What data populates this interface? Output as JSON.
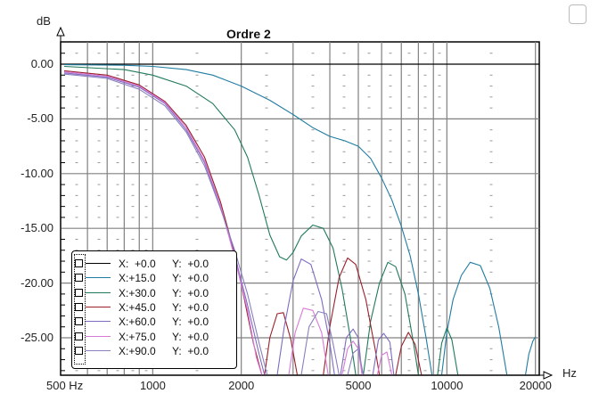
{
  "window": {
    "corner_button": "maximize"
  },
  "chart_data": {
    "type": "line",
    "title": "Ordre 2",
    "xlabel": "Hz",
    "ylabel": "dB",
    "xscale": "log",
    "xlim": [
      500,
      20000
    ],
    "ylim": [
      -28.4,
      2.0
    ],
    "grid": true,
    "legend_position": "lower-left",
    "x_tick_labels": [
      "500 Hz",
      "1000",
      "2000",
      "5000",
      "10000",
      "20000"
    ],
    "x_ticks": [
      500,
      1000,
      2000,
      5000,
      10000,
      20000
    ],
    "x_minor_grid": [
      600,
      700,
      800,
      900,
      1000,
      2000,
      3000,
      4000,
      5000,
      6000,
      7000,
      8000,
      9000,
      10000,
      20000
    ],
    "y_tick_labels": [
      "0.00",
      "-5.00",
      "-10.00",
      "-15.00",
      "-20.00",
      "-25.00"
    ],
    "y_ticks": [
      0,
      -5,
      -10,
      -15,
      -20,
      -25
    ],
    "series": [
      {
        "name": "X: +0.0  Y: +0.0",
        "color": "#000000",
        "points": [
          [
            500,
            0
          ],
          [
            20000,
            0
          ]
        ]
      },
      {
        "name": "X:+15.0  Y: +0.0",
        "color": "#1f7ca0",
        "points": [
          [
            500,
            -0.05
          ],
          [
            800,
            -0.1
          ],
          [
            1000,
            -0.2
          ],
          [
            1300,
            -0.5
          ],
          [
            1600,
            -1.0
          ],
          [
            2000,
            -2.0
          ],
          [
            2500,
            -3.3
          ],
          [
            3000,
            -4.6
          ],
          [
            3500,
            -5.8
          ],
          [
            4000,
            -6.6
          ],
          [
            4500,
            -7.0
          ],
          [
            5000,
            -7.5
          ],
          [
            5500,
            -8.6
          ],
          [
            6000,
            -10.4
          ],
          [
            6500,
            -12.4
          ],
          [
            7000,
            -14.8
          ],
          [
            7500,
            -17.5
          ],
          [
            8000,
            -21
          ],
          [
            8500,
            -25
          ],
          [
            8900,
            -28.4
          ]
        ],
        "lobes": [
          [
            [
              9600,
              -28.4
            ],
            [
              10000,
              -24.5
            ],
            [
              10500,
              -21.5
            ],
            [
              11200,
              -19.3
            ],
            [
              12000,
              -18.1
            ],
            [
              13000,
              -18.4
            ],
            [
              14000,
              -20.5
            ],
            [
              15000,
              -24
            ],
            [
              16000,
              -28.4
            ]
          ],
          [
            [
              18500,
              -28.4
            ],
            [
              19000,
              -26.5
            ],
            [
              19600,
              -25.3
            ],
            [
              20000,
              -24.9
            ]
          ]
        ]
      },
      {
        "name": "X:+30.0  Y: +0.0",
        "color": "#1f7a5a",
        "points": [
          [
            500,
            -0.2
          ],
          [
            800,
            -0.5
          ],
          [
            1000,
            -1.0
          ],
          [
            1300,
            -2.0
          ],
          [
            1600,
            -3.6
          ],
          [
            1900,
            -6.0
          ],
          [
            2100,
            -8.5
          ],
          [
            2300,
            -12.0
          ],
          [
            2500,
            -15.6
          ],
          [
            2700,
            -17.6
          ],
          [
            2850,
            -17.9
          ],
          [
            3000,
            -17.2
          ],
          [
            3200,
            -15.7
          ],
          [
            3500,
            -14.7
          ],
          [
            3800,
            -15.0
          ],
          [
            4100,
            -16.8
          ],
          [
            4400,
            -20.5
          ],
          [
            4700,
            -25
          ],
          [
            4900,
            -28.4
          ]
        ],
        "lobes": [
          [
            [
              5200,
              -28.4
            ],
            [
              5500,
              -23.5
            ],
            [
              5900,
              -20.0
            ],
            [
              6300,
              -18.1
            ],
            [
              6700,
              -18.5
            ],
            [
              7200,
              -21.0
            ],
            [
              7700,
              -25.5
            ],
            [
              8000,
              -28.4
            ]
          ],
          [
            [
              9300,
              -28.4
            ],
            [
              9600,
              -25.5
            ],
            [
              10000,
              -24.1
            ],
            [
              10400,
              -25.2
            ],
            [
              10900,
              -28.4
            ]
          ]
        ]
      },
      {
        "name": "X:+45.0  Y: +0.0",
        "color": "#9a1f2a",
        "points": [
          [
            500,
            -0.6
          ],
          [
            700,
            -1.0
          ],
          [
            900,
            -1.9
          ],
          [
            1100,
            -3.4
          ],
          [
            1300,
            -5.6
          ],
          [
            1500,
            -8.5
          ],
          [
            1700,
            -12.6
          ],
          [
            1900,
            -17.3
          ],
          [
            2050,
            -21.5
          ],
          [
            2200,
            -25.5
          ],
          [
            2350,
            -28.4
          ]
        ],
        "lobes": [
          [
            [
              2400,
              -28.4
            ],
            [
              2500,
              -25.0
            ],
            [
              2650,
              -22.8
            ],
            [
              2780,
              -22.7
            ],
            [
              2950,
              -25.2
            ],
            [
              3100,
              -28.4
            ]
          ],
          [
            [
              3800,
              -28.4
            ],
            [
              4000,
              -24.0
            ],
            [
              4300,
              -19.5
            ],
            [
              4600,
              -17.7
            ],
            [
              4900,
              -18.3
            ],
            [
              5300,
              -21.5
            ],
            [
              5700,
              -26.0
            ],
            [
              5900,
              -28.4
            ]
          ],
          [
            [
              6700,
              -28.4
            ],
            [
              7000,
              -25.8
            ],
            [
              7400,
              -24.5
            ],
            [
              7800,
              -25.6
            ],
            [
              8200,
              -28.4
            ]
          ]
        ]
      },
      {
        "name": "X:+60.0  Y: +0.0",
        "color": "#7f6bc0",
        "points": [
          [
            500,
            -0.8
          ],
          [
            700,
            -1.2
          ],
          [
            900,
            -2.1
          ],
          [
            1100,
            -3.6
          ],
          [
            1300,
            -6.0
          ],
          [
            1500,
            -9.0
          ],
          [
            1700,
            -13.0
          ],
          [
            1900,
            -17.5
          ],
          [
            2100,
            -22.0
          ],
          [
            2300,
            -26.5
          ],
          [
            2400,
            -28.4
          ]
        ],
        "lobes": [
          [
            [
              2650,
              -28.4
            ],
            [
              2800,
              -24.0
            ],
            [
              3000,
              -19.8
            ],
            [
              3200,
              -17.8
            ],
            [
              3450,
              -18.3
            ],
            [
              3750,
              -21.5
            ],
            [
              4000,
              -25.5
            ],
            [
              4150,
              -28.4
            ]
          ],
          [
            [
              4350,
              -28.4
            ],
            [
              4550,
              -25.0
            ],
            [
              4800,
              -24.2
            ],
            [
              5000,
              -25.0
            ],
            [
              5150,
              -28.4
            ]
          ],
          [
            [
              5600,
              -28.4
            ],
            [
              5850,
              -25.2
            ],
            [
              6100,
              -24.6
            ],
            [
              6400,
              -25.4
            ],
            [
              6600,
              -28.4
            ]
          ]
        ]
      },
      {
        "name": "X:+75.0  Y: +0.0",
        "color": "#d77ad7",
        "points": [
          [
            500,
            -0.7
          ],
          [
            700,
            -1.1
          ],
          [
            900,
            -2.0
          ],
          [
            1100,
            -3.5
          ],
          [
            1300,
            -5.8
          ],
          [
            1500,
            -8.8
          ],
          [
            1700,
            -12.9
          ],
          [
            1900,
            -17.7
          ],
          [
            2100,
            -22.5
          ],
          [
            2250,
            -26.8
          ],
          [
            2350,
            -28.4
          ]
        ],
        "lobes": [
          [
            [
              2900,
              -28.4
            ],
            [
              3050,
              -24.5
            ],
            [
              3250,
              -22.3
            ],
            [
              3500,
              -22.5
            ],
            [
              3750,
              -24.5
            ],
            [
              3950,
              -28.4
            ]
          ],
          [
            [
              4400,
              -28.4
            ],
            [
              4600,
              -26.0
            ],
            [
              4800,
              -25.3
            ],
            [
              5000,
              -26.0
            ],
            [
              5150,
              -28.4
            ]
          ],
          [
            [
              5800,
              -28.4
            ],
            [
              6000,
              -26.6
            ],
            [
              6250,
              -26.3
            ],
            [
              6500,
              -28.4
            ]
          ]
        ]
      },
      {
        "name": "X:+90.0  Y: +0.0",
        "color": "#8a7fbf",
        "points": [
          [
            500,
            -0.9
          ],
          [
            700,
            -1.3
          ],
          [
            900,
            -2.3
          ],
          [
            1100,
            -3.8
          ],
          [
            1300,
            -6.2
          ],
          [
            1500,
            -9.3
          ],
          [
            1700,
            -13.2
          ],
          [
            1900,
            -17.0
          ],
          [
            2100,
            -21.0
          ],
          [
            2300,
            -25.5
          ],
          [
            2450,
            -28.4
          ]
        ],
        "lobes": [
          [
            [
              3200,
              -28.4
            ],
            [
              3400,
              -24.0
            ],
            [
              3650,
              -22.6
            ],
            [
              3900,
              -22.8
            ],
            [
              4100,
              -25.5
            ],
            [
              4300,
              -28.4
            ]
          ],
          [
            [
              4600,
              -28.4
            ],
            [
              4800,
              -26.4
            ],
            [
              5000,
              -26.0
            ],
            [
              5200,
              -28.4
            ]
          ]
        ]
      }
    ]
  },
  "legend": {
    "rows": [
      {
        "x": "X:  +0.0",
        "y": "Y:  +0.0",
        "color": "#000000"
      },
      {
        "x": "X:+15.0",
        "y": "Y:  +0.0",
        "color": "#1f7ca0"
      },
      {
        "x": "X:+30.0",
        "y": "Y:  +0.0",
        "color": "#1f7a5a"
      },
      {
        "x": "X:+45.0",
        "y": "Y:  +0.0",
        "color": "#9a1f2a"
      },
      {
        "x": "X:+60.0",
        "y": "Y:  +0.0",
        "color": "#7f6bc0"
      },
      {
        "x": "X:+75.0",
        "y": "Y:  +0.0",
        "color": "#d77ad7"
      },
      {
        "x": "X:+90.0",
        "y": "Y:  +0.0",
        "color": "#8a7fbf"
      }
    ]
  },
  "axis": {
    "y_unit": "dB",
    "x_unit": "Hz"
  }
}
